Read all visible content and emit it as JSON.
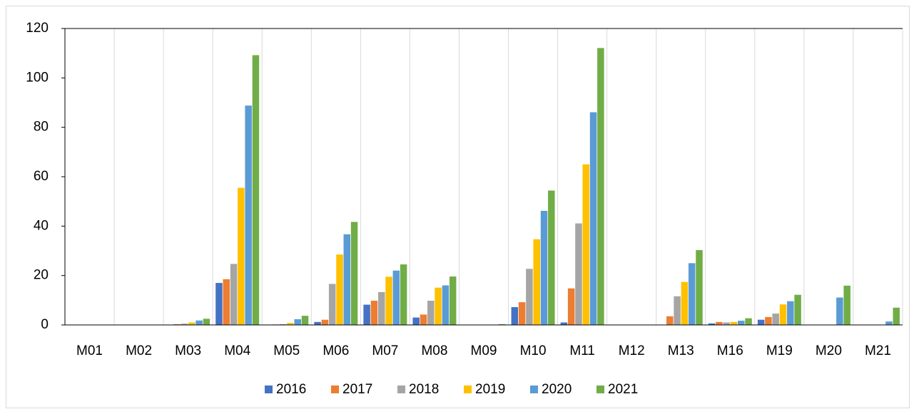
{
  "chart_data": {
    "type": "bar",
    "categories": [
      "M01",
      "M02",
      "M03",
      "M04",
      "M05",
      "M06",
      "M07",
      "M08",
      "M09",
      "M10",
      "M11",
      "M12",
      "M13",
      "M16",
      "M19",
      "M20",
      "M21"
    ],
    "series": [
      {
        "name": "2016",
        "color": "#4472c4",
        "values": [
          0,
          0,
          0,
          17,
          0,
          1.2,
          8.2,
          3,
          0,
          7.2,
          1,
          0,
          0,
          0.6,
          2.1,
          0,
          0
        ]
      },
      {
        "name": "2017",
        "color": "#ed7d31",
        "values": [
          0,
          0,
          0.3,
          18.5,
          0.2,
          2.1,
          9.8,
          4.2,
          0,
          9.2,
          14.8,
          0,
          3.5,
          1.2,
          3.2,
          0,
          0
        ]
      },
      {
        "name": "2018",
        "color": "#a5a5a5",
        "values": [
          0,
          0,
          0.5,
          24.7,
          0.3,
          16.6,
          13.3,
          9.8,
          0,
          22.7,
          41.1,
          0,
          11.6,
          1,
          4.6,
          0,
          0
        ]
      },
      {
        "name": "2019",
        "color": "#ffc000",
        "values": [
          0,
          0,
          1,
          55.5,
          0.8,
          28.5,
          19.5,
          15.1,
          0,
          34.7,
          65,
          0,
          17.4,
          1.2,
          8.3,
          0,
          0
        ]
      },
      {
        "name": "2020",
        "color": "#5b9bd5",
        "values": [
          0,
          0,
          1.8,
          88.8,
          2.3,
          36.7,
          22,
          16,
          0,
          46.2,
          86.1,
          0,
          25,
          1.7,
          9.6,
          11.1,
          1.4
        ]
      },
      {
        "name": "2021",
        "color": "#70ad47",
        "values": [
          0,
          0,
          2.5,
          109.2,
          3.7,
          41.7,
          24.5,
          19.6,
          0.3,
          54.4,
          112.1,
          0,
          30.3,
          2.7,
          12.2,
          15.9,
          7
        ]
      }
    ],
    "ylim": [
      0,
      120
    ],
    "yticks": [
      0,
      20,
      40,
      60,
      80,
      100,
      120
    ],
    "grid": "vertical",
    "legend": "bottom"
  }
}
